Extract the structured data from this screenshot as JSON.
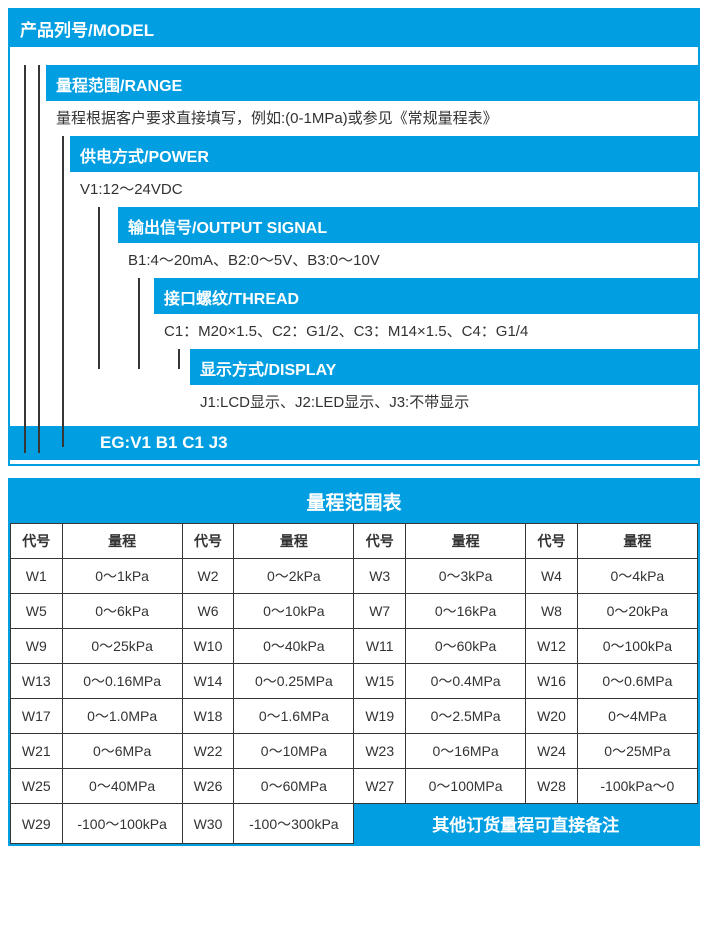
{
  "colors": {
    "accent": "#029ee2",
    "line": "#363636",
    "text": "#333333",
    "bg": "#ffffff"
  },
  "model": {
    "title": "产品列号/MODEL",
    "items": [
      {
        "header": "量程范围/RANGE",
        "text": "量程根据客户要求直接填写，例如:(0-1MPa)或参见《常规量程表》"
      },
      {
        "header": "供电方式/POWER",
        "text": "V1:12～24VDC"
      },
      {
        "header": "输出信号/OUTPUT SIGNAL",
        "text": "B1:4～20mA、B2:0～5V、B3:0～10V"
      },
      {
        "header": "接口螺纹/THREAD",
        "text": "C1：M20×1.5、C2：G1/2、C3：M14×1.5、C4：G1/4"
      },
      {
        "header": "显示方式/DISPLAY",
        "text": "J1:LCD显示、J2:LED显示、J3:不带显示"
      }
    ],
    "example": "EG:V1 B1 C1 J3"
  },
  "rangeTable": {
    "title": "量程范围表",
    "headers": {
      "code": "代号",
      "range": "量程"
    },
    "note": "其他订货量程可直接备注",
    "rows": [
      [
        [
          "W1",
          "0～1kPa"
        ],
        [
          "W2",
          "0～2kPa"
        ],
        [
          "W3",
          "0～3kPa"
        ],
        [
          "W4",
          "0～4kPa"
        ]
      ],
      [
        [
          "W5",
          "0～6kPa"
        ],
        [
          "W6",
          "0～10kPa"
        ],
        [
          "W7",
          "0～16kPa"
        ],
        [
          "W8",
          "0～20kPa"
        ]
      ],
      [
        [
          "W9",
          "0～25kPa"
        ],
        [
          "W10",
          "0～40kPa"
        ],
        [
          "W11",
          "0～60kPa"
        ],
        [
          "W12",
          "0～100kPa"
        ]
      ],
      [
        [
          "W13",
          "0～0.16MPa"
        ],
        [
          "W14",
          "0～0.25MPa"
        ],
        [
          "W15",
          "0～0.4MPa"
        ],
        [
          "W16",
          "0～0.6MPa"
        ]
      ],
      [
        [
          "W17",
          "0～1.0MPa"
        ],
        [
          "W18",
          "0～1.6MPa"
        ],
        [
          "W19",
          "0～2.5MPa"
        ],
        [
          "W20",
          "0～4MPa"
        ]
      ],
      [
        [
          "W21",
          "0～6MPa"
        ],
        [
          "W22",
          "0～10MPa"
        ],
        [
          "W23",
          "0～16MPa"
        ],
        [
          "W24",
          "0～25MPa"
        ]
      ],
      [
        [
          "W25",
          "0～40MPa"
        ],
        [
          "W26",
          "0～60MPa"
        ],
        [
          "W27",
          "0～100MPa"
        ],
        [
          "W28",
          "-100kPa～0"
        ]
      ],
      [
        [
          "W29",
          "-100～100kPa"
        ],
        [
          "W30",
          "-100～300kPa"
        ]
      ]
    ]
  }
}
